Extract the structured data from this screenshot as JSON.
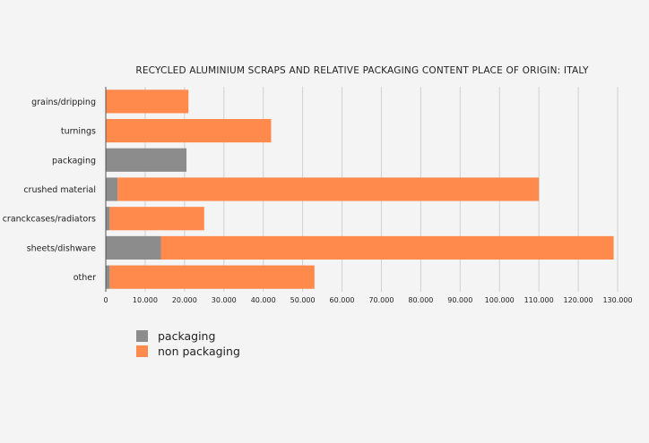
{
  "chart_data": {
    "type": "bar",
    "orientation": "horizontal",
    "stacked": true,
    "title": "RECYCLED ALUMINIUM SCRAPS AND RELATIVE PACKAGING CONTENT PLACE OF ORIGIN: ITALY",
    "xlabel": "",
    "ylabel": "",
    "categories": [
      "grains/dripping",
      "turnings",
      "packaging",
      "crushed material",
      "cranckcases/radiators",
      "sheets/dishware",
      "other"
    ],
    "series": [
      {
        "name": "packaging",
        "color": "#8c8c8c",
        "values": [
          0,
          0,
          20500,
          3000,
          1000,
          14000,
          1000
        ]
      },
      {
        "name": "non packaging",
        "color": "#ff8a4c",
        "values": [
          21000,
          42000,
          0,
          107000,
          24000,
          115000,
          52000
        ]
      }
    ],
    "xlim": [
      0,
      130000
    ],
    "xticks": [
      0,
      10000,
      20000,
      30000,
      40000,
      50000,
      60000,
      70000,
      80000,
      90000,
      100000,
      110000,
      120000,
      130000
    ],
    "xtick_labels": [
      "0",
      "10.000",
      "20.000",
      "30.000",
      "40.000",
      "50.000",
      "60.000",
      "70.000",
      "80.000",
      "90.000",
      "100.000",
      "110.000",
      "120.000",
      "130.000"
    ],
    "grid": "vertical",
    "legend_position": "bottom-left"
  }
}
